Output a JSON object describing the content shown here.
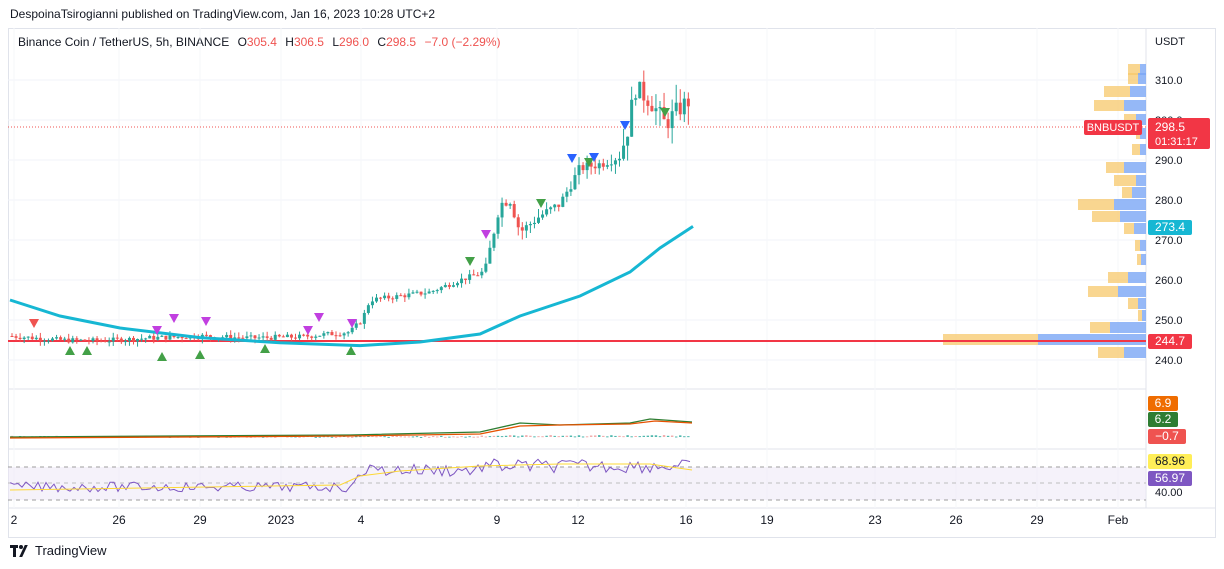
{
  "header": {
    "published": "DespoinaTsirogianni published on TradingView.com, Jan 16, 2023 10:28 UTC+2"
  },
  "legend": {
    "symbol": "Binance Coin / TetherUS, 5h, BINANCE",
    "o_label": "O",
    "o": "305.4",
    "h_label": "H",
    "h": "306.5",
    "l_label": "L",
    "l": "296.0",
    "c_label": "C",
    "c": "298.5",
    "change": "−7.0 (−2.29%)"
  },
  "price_axis": {
    "currency": "USDT",
    "ticks": [
      "310.0",
      "300.0",
      "290.0",
      "280.0",
      "270.0",
      "260.0",
      "250.0",
      "240.0"
    ],
    "labels": {
      "symbol_tag": "BNBUSDT",
      "last_price": "298.5",
      "countdown": "01:31:17",
      "ma_value": "273.4",
      "level_value": "244.7"
    }
  },
  "macd_axis": {
    "v1": "6.9",
    "v2": "6.2",
    "v3": "−0.7"
  },
  "rsi_axis": {
    "v1": "68.96",
    "v2": "56.97",
    "tick": "40.00"
  },
  "time_axis": [
    "2",
    "26",
    "29",
    "2023",
    "4",
    "9",
    "12",
    "16",
    "19",
    "23",
    "26",
    "29",
    "Feb"
  ],
  "footer": {
    "brand": "TradingView"
  },
  "colors": {
    "up": "#26a69a",
    "down": "#ef5350",
    "ma": "#16b7d3",
    "level": "#f23645",
    "macd_line": "#2e7d32",
    "signal_line": "#e65100",
    "rsi": "#7e57c2"
  }
}
